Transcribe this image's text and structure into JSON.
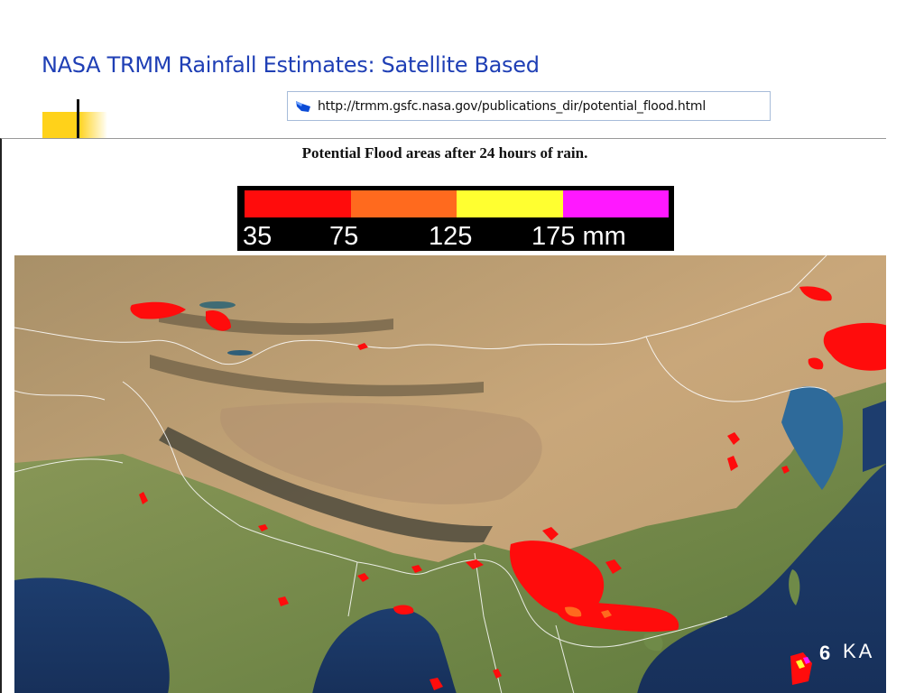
{
  "slide": {
    "title": "NASA TRMM Rainfall Estimates: Satellite Based"
  },
  "address_bar": {
    "url": "http://trmm.gsfc.nasa.gov/publications_dir/potential_flood.html",
    "icon": "ie-page-icon"
  },
  "webpage": {
    "heading": "Potential Flood areas after 24 hours of rain.",
    "legend": {
      "colors": [
        "#ff0c0c",
        "#ff6a1e",
        "#ffff30",
        "#ff18ff"
      ],
      "labels": [
        "35",
        "75",
        "125",
        "175 mm"
      ]
    },
    "map_corner_text": "KA",
    "map_corner_number": "6"
  }
}
